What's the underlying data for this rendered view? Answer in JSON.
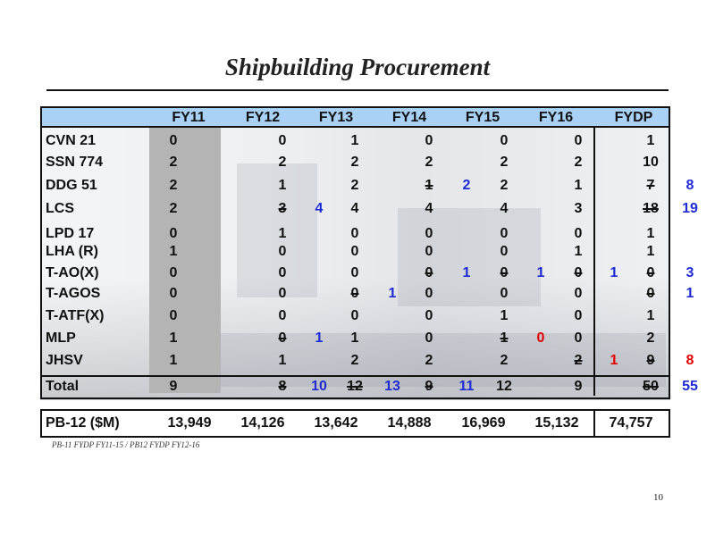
{
  "title": "Shipbuilding Procurement",
  "columns": [
    "FY11",
    "FY12",
    "FY13",
    "FY14",
    "FY15",
    "FY16",
    "FYDP"
  ],
  "rows": [
    {
      "label": "CVN 21",
      "cells": [
        {
          "v": "0"
        },
        {
          "v": "0"
        },
        {
          "v": "1"
        },
        {
          "v": "0"
        },
        {
          "v": "0"
        },
        {
          "v": "0"
        },
        {
          "v": "1"
        }
      ]
    },
    {
      "label": "SSN 774",
      "cells": [
        {
          "v": "2"
        },
        {
          "v": "2"
        },
        {
          "v": "2"
        },
        {
          "v": "2"
        },
        {
          "v": "2"
        },
        {
          "v": "2"
        },
        {
          "v": "10"
        }
      ]
    },
    {
      "label": "DDG 51",
      "cells": [
        {
          "v": "2"
        },
        {
          "v": "1"
        },
        {
          "v": "2"
        },
        {
          "v": "1",
          "s": true,
          "n": "2",
          "c": "blue"
        },
        {
          "v": "2"
        },
        {
          "v": "1"
        },
        {
          "v": "7",
          "s": true,
          "n": "8",
          "c": "blue"
        }
      ]
    },
    {
      "label": "LCS",
      "cells": [
        {
          "v": "2"
        },
        {
          "v": "3",
          "s": true,
          "n": "4",
          "c": "blue"
        },
        {
          "v": "4"
        },
        {
          "v": "4"
        },
        {
          "v": "4"
        },
        {
          "v": "3"
        },
        {
          "v": "18",
          "s": true,
          "n": "19",
          "c": "blue"
        }
      ]
    },
    {
      "label": "LPD 17",
      "cells": [
        {
          "v": "0"
        },
        {
          "v": "1"
        },
        {
          "v": "0"
        },
        {
          "v": "0"
        },
        {
          "v": "0"
        },
        {
          "v": "0"
        },
        {
          "v": "1"
        }
      ]
    },
    {
      "label": "LHA (R)",
      "cells": [
        {
          "v": "1"
        },
        {
          "v": "0"
        },
        {
          "v": "0"
        },
        {
          "v": "0"
        },
        {
          "v": "0"
        },
        {
          "v": "1"
        },
        {
          "v": "1"
        }
      ]
    },
    {
      "label": "T-AO(X)",
      "cells": [
        {
          "v": "0"
        },
        {
          "v": "0"
        },
        {
          "v": "0"
        },
        {
          "v": "0",
          "s": true,
          "n": "1",
          "c": "blue"
        },
        {
          "v": "0",
          "s": true,
          "n": "1",
          "c": "blue"
        },
        {
          "v": "0",
          "s": true,
          "n": "1",
          "c": "blue"
        },
        {
          "v": "0",
          "s": true,
          "n": "3",
          "c": "blue"
        }
      ]
    },
    {
      "label": "T-AGOS",
      "cells": [
        {
          "v": "0"
        },
        {
          "v": "0"
        },
        {
          "v": "0",
          "s": true,
          "n": "1",
          "c": "blue"
        },
        {
          "v": "0"
        },
        {
          "v": "0"
        },
        {
          "v": "0"
        },
        {
          "v": "0",
          "s": true,
          "n": "1",
          "c": "blue"
        }
      ]
    },
    {
      "label": "T-ATF(X)",
      "cells": [
        {
          "v": "0"
        },
        {
          "v": "0"
        },
        {
          "v": "0"
        },
        {
          "v": "0"
        },
        {
          "v": "1"
        },
        {
          "v": "0"
        },
        {
          "v": "1"
        }
      ]
    },
    {
      "label": "MLP",
      "cells": [
        {
          "v": "1"
        },
        {
          "v": "0",
          "s": true,
          "n": "1",
          "c": "blue"
        },
        {
          "v": "1"
        },
        {
          "v": "0"
        },
        {
          "v": "1",
          "s": true,
          "n": "0",
          "c": "red"
        },
        {
          "v": "0"
        },
        {
          "v": "2"
        }
      ]
    },
    {
      "label": "JHSV",
      "cells": [
        {
          "v": "1"
        },
        {
          "v": "1"
        },
        {
          "v": "2"
        },
        {
          "v": "2"
        },
        {
          "v": "2"
        },
        {
          "v": "2",
          "s": true,
          "n": "1",
          "c": "red"
        },
        {
          "v": "9",
          "s": true,
          "n": "8",
          "c": "red"
        }
      ]
    }
  ],
  "total": {
    "label": "Total",
    "cells": [
      {
        "v": "9"
      },
      {
        "v": "8",
        "s": true,
        "n": "10",
        "c": "blue"
      },
      {
        "v": "12",
        "s": true,
        "n": "13",
        "c": "blue"
      },
      {
        "v": "9",
        "s": true,
        "n": "11",
        "c": "blue"
      },
      {
        "v": "12"
      },
      {
        "v": "9"
      },
      {
        "v": "50",
        "s": true,
        "n": "55",
        "c": "blue"
      }
    ]
  },
  "pb": {
    "label": "PB-12 ($M)",
    "values": [
      "13,949",
      "14,126",
      "13,642",
      "14,888",
      "16,969",
      "15,132",
      "74,757"
    ]
  },
  "footnote": "PB-11 FYDP FY11-15 / PB12 FYDP FY12-16",
  "page_number": "10",
  "colors": {
    "header_bg": "#a9d1f5",
    "shade": "#b4b4b4",
    "blue": "#1f2bd1",
    "red": "#e00000"
  }
}
